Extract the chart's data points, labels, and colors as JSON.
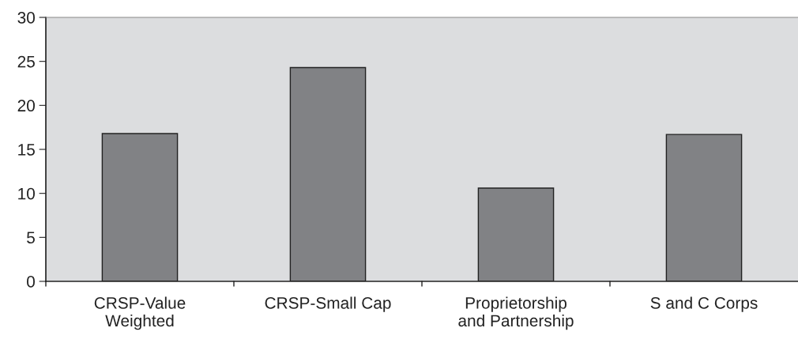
{
  "chart_data": {
    "type": "bar",
    "categories": [
      "CRSP-Value\nWeighted",
      "CRSP-Small Cap",
      "Proprietorship\nand Partnership",
      "S and C Corps"
    ],
    "values": [
      16.8,
      24.3,
      10.6,
      16.7
    ],
    "color": "#818285",
    "ylim": [
      0,
      30
    ],
    "yticks": [
      0,
      5,
      10,
      15,
      20,
      25,
      30
    ],
    "grid": false,
    "legend": false
  }
}
